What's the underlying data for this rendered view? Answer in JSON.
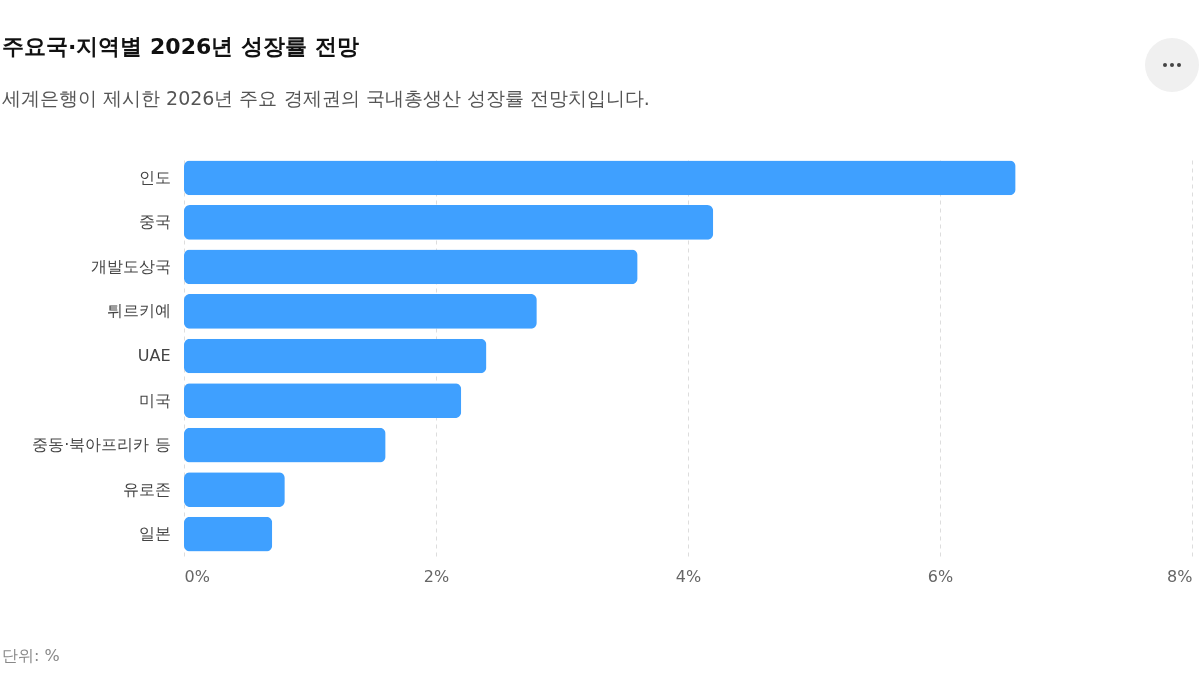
{
  "chart_data": {
    "type": "bar",
    "orientation": "horizontal",
    "title": "주요국·지역별 2026년 성장률 전망",
    "subtitle": "세계은행이 제시한 2026년 주요 경제권의 국내총생산 성장률 전망치입니다.",
    "categories": [
      "인도",
      "중국",
      "개발도상국",
      "튀르키예",
      "UAE",
      "미국",
      "중동·북아프리카 등",
      "유로존",
      "일본"
    ],
    "values": [
      6.6,
      4.2,
      3.6,
      2.8,
      2.4,
      2.2,
      1.6,
      0.8,
      0.7
    ],
    "color": "#3fa0ff",
    "xlim": [
      0,
      8
    ],
    "xticks": [
      {
        "value": 0,
        "label": "0%"
      },
      {
        "value": 2,
        "label": "2%"
      },
      {
        "value": 4,
        "label": "4%"
      },
      {
        "value": 6,
        "label": "6%"
      },
      {
        "value": 8,
        "label": "8%"
      }
    ],
    "grid": "x",
    "annotations": [
      "단위: %"
    ]
  }
}
